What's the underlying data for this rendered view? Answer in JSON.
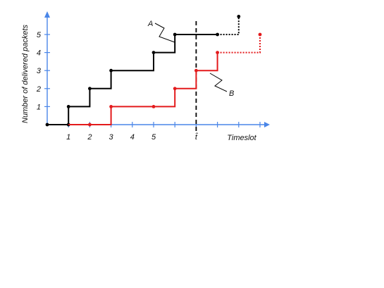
{
  "chart_data": {
    "type": "line",
    "xlabel": "Timeslot",
    "ylabel": "Number of delivered packets",
    "x_tick_labels": [
      "1",
      "2",
      "3",
      "4",
      "5"
    ],
    "y_tick_labels": [
      "1",
      "2",
      "3",
      "4",
      "5"
    ],
    "special_tick_label": "t̂",
    "x_range": [
      0,
      10
    ],
    "y_range": [
      0,
      5
    ],
    "dashed_vertical_x": 7,
    "series": [
      {
        "name": "A",
        "color": "#000000",
        "steps": [
          [
            0,
            0
          ],
          [
            1,
            1
          ],
          [
            2,
            2
          ],
          [
            3,
            3
          ],
          [
            5,
            4
          ],
          [
            6,
            5
          ]
        ],
        "solid_until": 8,
        "dotted": [
          [
            8,
            5
          ],
          [
            9,
            5
          ],
          [
            9,
            6
          ]
        ],
        "points": [
          [
            0,
            0
          ],
          [
            1,
            0
          ],
          [
            1,
            1
          ],
          [
            2,
            2
          ],
          [
            3,
            3
          ],
          [
            5,
            4
          ],
          [
            6,
            5
          ],
          [
            8,
            5
          ],
          [
            9,
            6
          ]
        ]
      },
      {
        "name": "B",
        "color": "#e31a1c",
        "steps": [
          [
            1,
            0
          ],
          [
            3,
            1
          ],
          [
            6,
            2
          ],
          [
            7,
            3
          ],
          [
            8,
            4
          ]
        ],
        "solid_until": 8,
        "dotted": [
          [
            8,
            4
          ],
          [
            10,
            4
          ],
          [
            10,
            5
          ]
        ],
        "points": [
          [
            2,
            0
          ],
          [
            3,
            1
          ],
          [
            5,
            1
          ],
          [
            6,
            2
          ],
          [
            7,
            3
          ],
          [
            8,
            4
          ],
          [
            10,
            5
          ]
        ]
      }
    ],
    "annotations": [
      "A",
      "B"
    ],
    "grid": false
  }
}
